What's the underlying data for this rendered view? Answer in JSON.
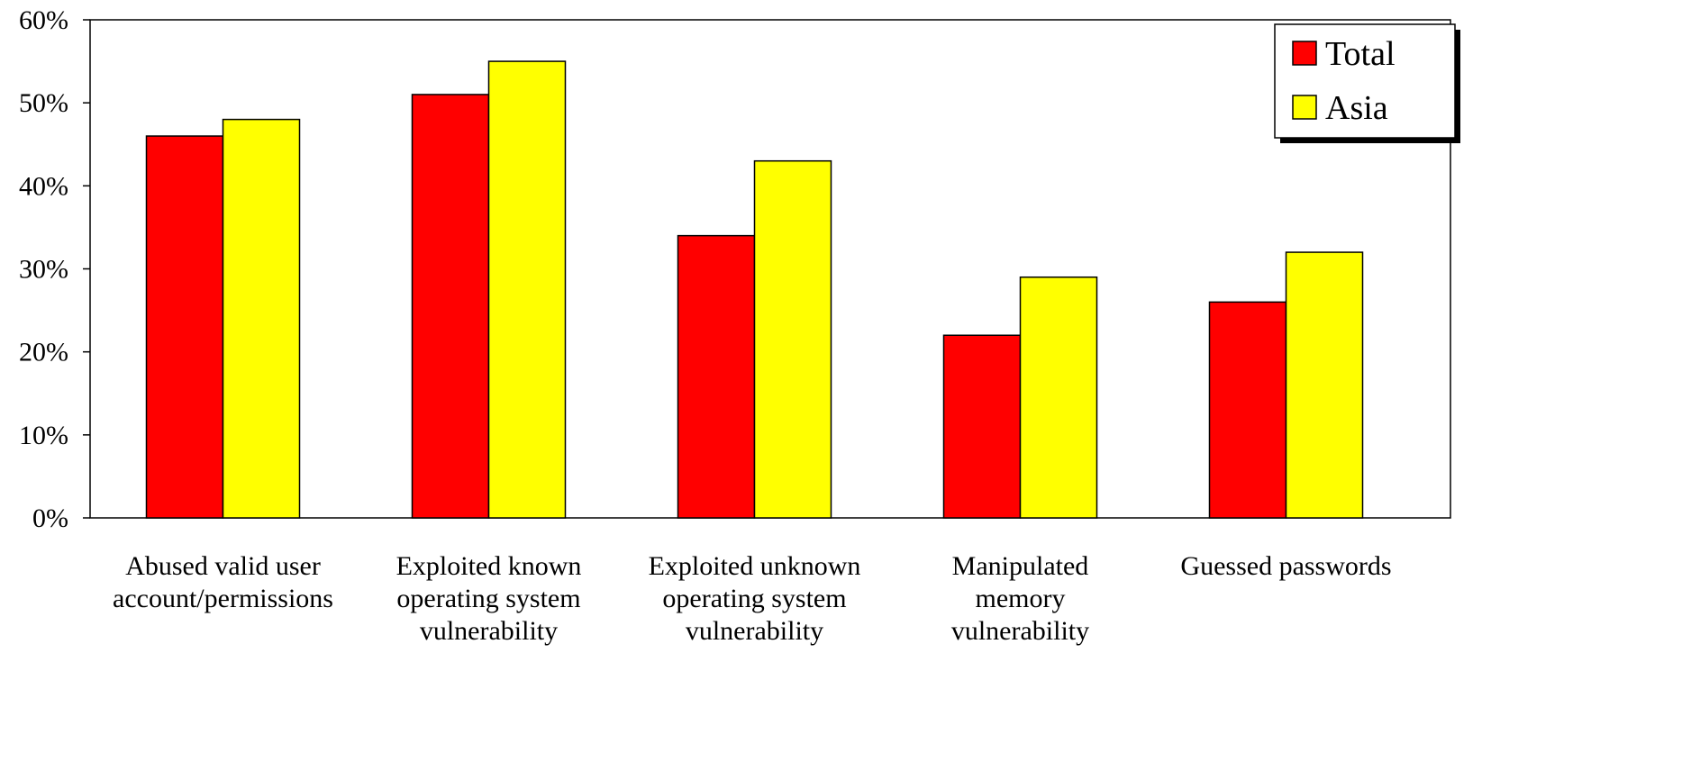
{
  "chart_data": {
    "type": "bar",
    "categories": [
      "Abused valid user\naccount/permissions",
      "Exploited known\noperating system\nvulnerability",
      "Exploited unknown\noperating system\nvulnerability",
      "Manipulated\nmemory\nvulnerability",
      "Guessed passwords"
    ],
    "series": [
      {
        "name": "Total",
        "color": "#ff0000",
        "values": [
          46,
          51,
          34,
          22,
          26
        ]
      },
      {
        "name": "Asia",
        "color": "#ffff00",
        "values": [
          48,
          55,
          43,
          29,
          32
        ]
      }
    ],
    "ylim": [
      0,
      60
    ],
    "yticks": [
      {
        "value": 0,
        "label": "0%"
      },
      {
        "value": 10,
        "label": "10%"
      },
      {
        "value": 20,
        "label": "20%"
      },
      {
        "value": 30,
        "label": "30%"
      },
      {
        "value": 40,
        "label": "40%"
      },
      {
        "value": 50,
        "label": "50%"
      },
      {
        "value": 60,
        "label": "60%"
      }
    ],
    "grid": false,
    "legend": "top-right"
  }
}
